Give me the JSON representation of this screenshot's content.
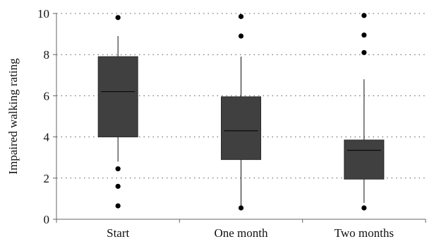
{
  "chart_data": {
    "type": "box",
    "title": "",
    "xlabel": "",
    "ylabel": "Impaired walking rating",
    "ylim": [
      0,
      10
    ],
    "yticks": [
      "0",
      "2",
      "4",
      "6",
      "8",
      "10"
    ],
    "grid": true,
    "categories": [
      "Start",
      "One month",
      "Two months"
    ],
    "boxes": [
      {
        "category": "Start",
        "whisker_low": 2.8,
        "q1": 4.0,
        "median": 6.2,
        "q3": 7.9,
        "whisker_high": 8.9,
        "outliers": [
          9.8,
          2.45,
          1.6,
          0.65
        ]
      },
      {
        "category": "One month",
        "whisker_low": 0.6,
        "q1": 2.9,
        "median": 4.3,
        "q3": 5.95,
        "whisker_high": 7.9,
        "outliers": [
          9.85,
          8.9,
          0.55
        ]
      },
      {
        "category": "Two months",
        "whisker_low": 0.8,
        "q1": 1.95,
        "median": 3.35,
        "q3": 3.85,
        "whisker_high": 6.8,
        "outliers": [
          9.9,
          8.95,
          8.1,
          0.55
        ]
      }
    ],
    "colors": {
      "box": "#404040",
      "outlier": "#000000"
    }
  }
}
